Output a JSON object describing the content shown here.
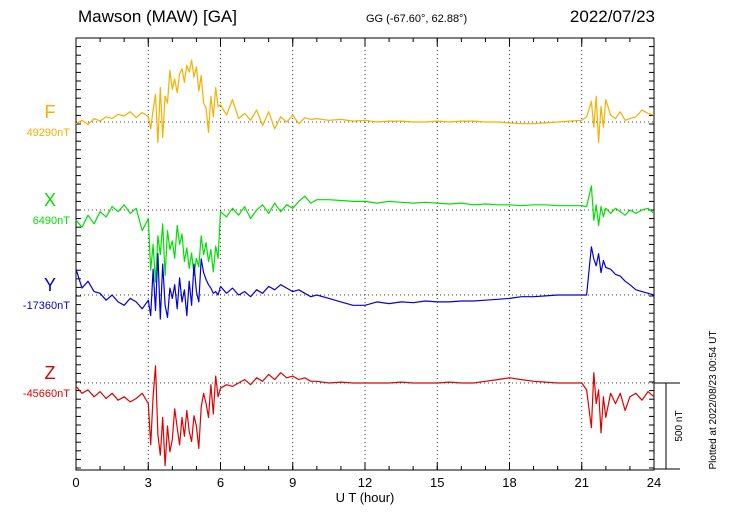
{
  "header": {
    "station": "Mawson (MAW)  [GA]",
    "coords": "GG (-67.60°,  62.88°)",
    "date": "2022/07/23"
  },
  "plotted_note": "Plotted at 2022/08/23 00:54 UT",
  "chart_data": {
    "type": "line",
    "xlabel": "U T (hour)",
    "xlim": [
      0,
      24
    ],
    "x_ticks": [
      "0",
      "3",
      "6",
      "9",
      "12",
      "15",
      "18",
      "21",
      "24"
    ],
    "scale_label": "500 nT",
    "grid": "dotted vertical lines every 3 hours, dotted baseline per series",
    "series": [
      {
        "name": "F",
        "baseline_label": "49290nT",
        "color": "#f5b000",
        "x": [
          0,
          0.25,
          0.5,
          0.75,
          1,
          1.25,
          1.5,
          1.75,
          2,
          2.25,
          2.5,
          2.75,
          3,
          3.1,
          3.2,
          3.3,
          3.4,
          3.5,
          3.6,
          3.7,
          3.8,
          3.9,
          4,
          4.1,
          4.2,
          4.3,
          4.4,
          4.5,
          4.6,
          4.7,
          4.8,
          4.9,
          5,
          5.1,
          5.2,
          5.3,
          5.4,
          5.5,
          5.6,
          5.7,
          5.8,
          5.9,
          6,
          6.25,
          6.5,
          6.75,
          7,
          7.25,
          7.5,
          7.75,
          8,
          8.25,
          8.5,
          8.75,
          9,
          9.25,
          9.5,
          9.75,
          10,
          10.5,
          11,
          11.5,
          12,
          12.5,
          13,
          13.5,
          14,
          14.5,
          15,
          15.5,
          16,
          16.5,
          17,
          17.5,
          18,
          18.5,
          19,
          19.5,
          20,
          20.5,
          21,
          21.2,
          21.4,
          21.5,
          21.6,
          21.7,
          21.8,
          21.9,
          22,
          22.2,
          22.4,
          22.6,
          22.8,
          23,
          23.25,
          23.5,
          23.75,
          24
        ],
        "values": [
          -10,
          10,
          -15,
          20,
          5,
          30,
          20,
          45,
          35,
          60,
          25,
          55,
          30,
          -40,
          70,
          160,
          -120,
          200,
          -90,
          150,
          110,
          300,
          190,
          250,
          170,
          280,
          310,
          230,
          330,
          290,
          360,
          260,
          320,
          180,
          270,
          110,
          80,
          -60,
          150,
          30,
          200,
          90,
          100,
          40,
          130,
          20,
          50,
          10,
          70,
          -20,
          60,
          -40,
          30,
          0,
          40,
          -10,
          25,
          15,
          20,
          10,
          15,
          5,
          10,
          0,
          5,
          5,
          0,
          0,
          5,
          0,
          5,
          5,
          0,
          0,
          -5,
          -10,
          -10,
          -5,
          0,
          5,
          10,
          30,
          120,
          -30,
          150,
          -120,
          90,
          -30,
          130,
          40,
          20,
          60,
          10,
          20,
          30,
          70,
          50,
          40
        ]
      },
      {
        "name": "X",
        "baseline_label": "6490nT",
        "color": "#00e000",
        "x": [
          0,
          0.25,
          0.5,
          0.75,
          1,
          1.25,
          1.5,
          1.75,
          2,
          2.25,
          2.5,
          2.75,
          3,
          3.1,
          3.2,
          3.3,
          3.4,
          3.5,
          3.6,
          3.7,
          3.8,
          3.9,
          4,
          4.1,
          4.2,
          4.3,
          4.4,
          4.5,
          4.6,
          4.7,
          4.8,
          4.9,
          5,
          5.1,
          5.2,
          5.3,
          5.4,
          5.5,
          5.6,
          5.7,
          5.8,
          5.9,
          6,
          6.25,
          6.5,
          6.75,
          7,
          7.25,
          7.5,
          7.75,
          8,
          8.25,
          8.5,
          8.75,
          9,
          9.25,
          9.5,
          9.75,
          10,
          10.5,
          11,
          11.5,
          12,
          12.5,
          13,
          13.5,
          14,
          14.5,
          15,
          15.5,
          16,
          16.5,
          17,
          17.5,
          18,
          18.5,
          19,
          19.5,
          20,
          20.5,
          21,
          21.2,
          21.4,
          21.5,
          21.6,
          21.7,
          21.8,
          21.9,
          22,
          22.2,
          22.4,
          22.6,
          22.8,
          23,
          23.25,
          23.5,
          23.75,
          24
        ],
        "values": [
          -60,
          -100,
          -30,
          -80,
          -10,
          -40,
          20,
          -10,
          30,
          -20,
          10,
          -120,
          -50,
          -350,
          -200,
          -420,
          -150,
          -260,
          -80,
          -380,
          -120,
          -230,
          -180,
          -280,
          -90,
          -200,
          -140,
          -300,
          -220,
          -340,
          -250,
          -380,
          -280,
          -330,
          -150,
          -260,
          -190,
          -300,
          -230,
          -360,
          -210,
          -280,
          -10,
          -40,
          10,
          -30,
          20,
          -50,
          0,
          30,
          -20,
          40,
          -10,
          30,
          10,
          50,
          80,
          40,
          60,
          60,
          55,
          50,
          50,
          40,
          50,
          45,
          40,
          45,
          40,
          35,
          40,
          30,
          35,
          30,
          30,
          25,
          30,
          30,
          25,
          25,
          25,
          20,
          140,
          -60,
          30,
          -90,
          20,
          -40,
          10,
          -20,
          10,
          -10,
          -30,
          0,
          -20,
          0,
          10,
          -20
        ]
      },
      {
        "name": "Y",
        "baseline_label": "-17360nT",
        "color": "#0000e0",
        "x": [
          0,
          0.25,
          0.5,
          0.75,
          1,
          1.25,
          1.5,
          1.75,
          2,
          2.25,
          2.5,
          2.75,
          3,
          3.1,
          3.2,
          3.3,
          3.4,
          3.5,
          3.6,
          3.7,
          3.8,
          3.9,
          4,
          4.1,
          4.2,
          4.3,
          4.4,
          4.5,
          4.6,
          4.7,
          4.8,
          4.9,
          5,
          5.1,
          5.2,
          5.3,
          5.4,
          5.5,
          5.6,
          5.7,
          5.8,
          5.9,
          6,
          6.25,
          6.5,
          6.75,
          7,
          7.25,
          7.5,
          7.75,
          8,
          8.25,
          8.5,
          8.75,
          9,
          9.25,
          9.5,
          9.75,
          10,
          10.5,
          11,
          11.5,
          12,
          12.5,
          13,
          13.5,
          14,
          14.5,
          15,
          15.5,
          16,
          16.5,
          17,
          17.5,
          18,
          18.5,
          19,
          19.5,
          20,
          20.5,
          21,
          21.2,
          21.4,
          21.5,
          21.6,
          21.7,
          21.8,
          21.9,
          22,
          22.2,
          22.4,
          22.6,
          22.8,
          23,
          23.25,
          23.5,
          23.75,
          24
        ],
        "values": [
          150,
          40,
          80,
          20,
          10,
          -30,
          0,
          -40,
          -60,
          -20,
          -40,
          -80,
          -30,
          -120,
          150,
          -90,
          240,
          -140,
          180,
          -60,
          -130,
          40,
          -20,
          60,
          -80,
          100,
          -40,
          30,
          -120,
          80,
          -60,
          180,
          20,
          -40,
          210,
          130,
          90,
          60,
          40,
          10,
          20,
          0,
          50,
          10,
          40,
          0,
          20,
          -10,
          30,
          10,
          50,
          30,
          60,
          40,
          20,
          30,
          10,
          -10,
          0,
          -20,
          -40,
          -60,
          -60,
          -40,
          -50,
          -40,
          -45,
          -35,
          -40,
          -40,
          -35,
          -35,
          -30,
          -25,
          -20,
          -10,
          -10,
          -5,
          0,
          0,
          0,
          0,
          280,
          210,
          170,
          240,
          130,
          200,
          160,
          150,
          120,
          110,
          80,
          60,
          30,
          20,
          10,
          0
        ]
      },
      {
        "name": "Z",
        "baseline_label": "-45660nT",
        "color": "#e00000",
        "x": [
          0,
          0.25,
          0.5,
          0.75,
          1,
          1.25,
          1.5,
          1.75,
          2,
          2.25,
          2.5,
          2.75,
          3,
          3.1,
          3.2,
          3.3,
          3.4,
          3.5,
          3.6,
          3.7,
          3.8,
          3.9,
          4,
          4.1,
          4.2,
          4.3,
          4.4,
          4.5,
          4.6,
          4.7,
          4.8,
          4.9,
          5,
          5.1,
          5.2,
          5.3,
          5.4,
          5.5,
          5.6,
          5.7,
          5.8,
          5.9,
          6,
          6.25,
          6.5,
          6.75,
          7,
          7.25,
          7.5,
          7.75,
          8,
          8.25,
          8.5,
          8.75,
          9,
          9.25,
          9.5,
          9.75,
          10,
          10.5,
          11,
          11.5,
          12,
          12.5,
          13,
          13.5,
          14,
          14.5,
          15,
          15.5,
          16,
          16.5,
          17,
          17.5,
          18,
          18.5,
          19,
          19.5,
          20,
          20.5,
          21,
          21.2,
          21.4,
          21.5,
          21.6,
          21.7,
          21.8,
          21.9,
          22,
          22.2,
          22.4,
          22.6,
          22.8,
          23,
          23.25,
          23.5,
          23.75,
          24
        ],
        "values": [
          -20,
          -60,
          -40,
          -80,
          -50,
          -90,
          -60,
          -100,
          -80,
          -110,
          -90,
          -60,
          -120,
          -360,
          -80,
          100,
          -300,
          -420,
          -200,
          -480,
          -250,
          -400,
          -330,
          -150,
          -260,
          -360,
          -200,
          -310,
          -160,
          -280,
          -340,
          -190,
          -250,
          -380,
          -140,
          -60,
          -120,
          -200,
          -10,
          -180,
          40,
          -80,
          -30,
          -10,
          -20,
          0,
          20,
          -10,
          30,
          10,
          50,
          20,
          60,
          30,
          40,
          20,
          30,
          10,
          10,
          0,
          5,
          0,
          0,
          0,
          0,
          5,
          0,
          0,
          0,
          5,
          0,
          0,
          10,
          20,
          30,
          20,
          10,
          5,
          0,
          0,
          0,
          -40,
          -260,
          60,
          -120,
          -40,
          -290,
          -80,
          -200,
          -60,
          -120,
          -60,
          -160,
          -80,
          -60,
          -100,
          -50,
          -80
        ]
      }
    ]
  }
}
